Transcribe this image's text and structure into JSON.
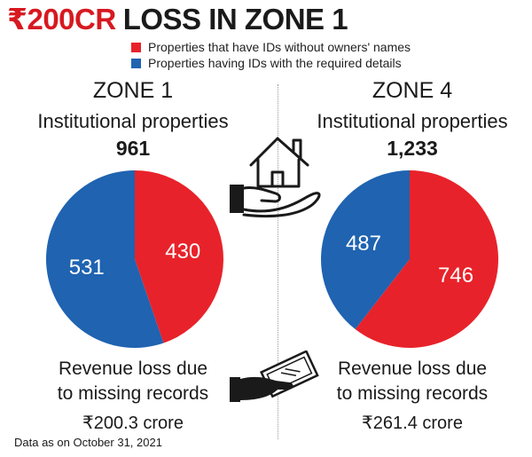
{
  "title": {
    "highlight": "₹200CR",
    "rest": "LOSS IN ZONE 1"
  },
  "colors": {
    "red": "#e8222a",
    "blue": "#1f63b1",
    "title_red": "#d71920"
  },
  "legend": [
    {
      "label": "Properties that have IDs without owners' names",
      "color": "#e8222a"
    },
    {
      "label": "Properties having IDs with the required details",
      "color": "#1f63b1"
    }
  ],
  "zones": [
    {
      "name": "ZONE 1",
      "subtitle": "Institutional properties",
      "total": "961",
      "revenue_line1": "Revenue loss due",
      "revenue_line2": "to missing records",
      "revenue_amount": "₹200.3 crore"
    },
    {
      "name": "ZONE 4",
      "subtitle": "Institutional properties",
      "total": "1,233",
      "revenue_line1": "Revenue loss due",
      "revenue_line2": "to missing records",
      "revenue_amount": "₹261.4 crore"
    }
  ],
  "chart_data": [
    {
      "type": "pie",
      "title": "ZONE 1",
      "slices": [
        {
          "label": "430",
          "value": 430,
          "series": "Properties that have IDs without owners' names",
          "color": "#e8222a"
        },
        {
          "label": "531",
          "value": 531,
          "series": "Properties having IDs with the required details",
          "color": "#1f63b1"
        }
      ]
    },
    {
      "type": "pie",
      "title": "ZONE 4",
      "slices": [
        {
          "label": "746",
          "value": 746,
          "series": "Properties that have IDs without owners' names",
          "color": "#e8222a"
        },
        {
          "label": "487",
          "value": 487,
          "series": "Properties having IDs with the required details",
          "color": "#1f63b1"
        }
      ]
    }
  ],
  "icons": [
    "house-in-hand-icon",
    "hand-with-money-icon"
  ],
  "footnote": "Data as on October 31, 2021"
}
